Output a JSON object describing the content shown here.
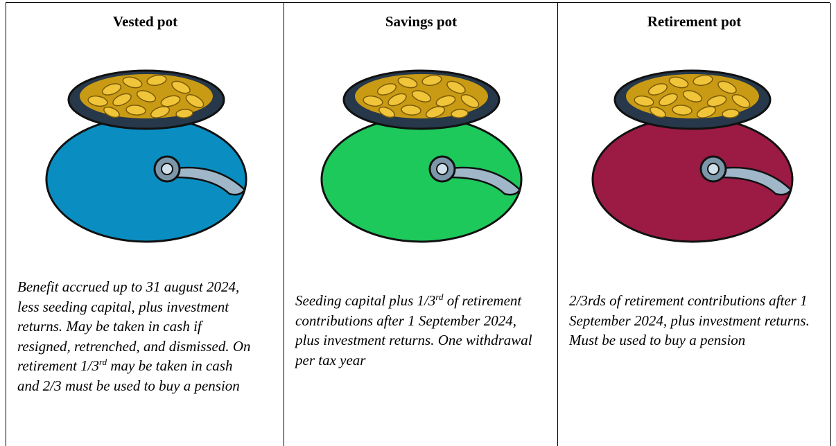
{
  "columns": [
    {
      "header": "Vested pot",
      "description": [
        {
          "text": "Benefit accrued up to 31 august 2024, less seeding capital, plus investment returns. May be taken in cash if resigned, retrenched, and dismissed. On retirement 1/3"
        },
        {
          "text": "rd",
          "sup": true
        },
        {
          "text": " may be taken in cash and 2/3 must be used to buy a pension"
        }
      ]
    },
    {
      "header": "Savings pot",
      "description": [
        {
          "text": "Seeding capital plus 1/3"
        },
        {
          "text": "rd",
          "sup": true
        },
        {
          "text": " of retirement contributions after 1 September 2024, plus investment returns. One withdrawal per tax year"
        }
      ]
    },
    {
      "header": "Retirement pot",
      "description": [
        {
          "text": "2/3rds of retirement contributions after 1 September 2024, plus investment returns. Must be used to buy a pension"
        }
      ]
    }
  ]
}
